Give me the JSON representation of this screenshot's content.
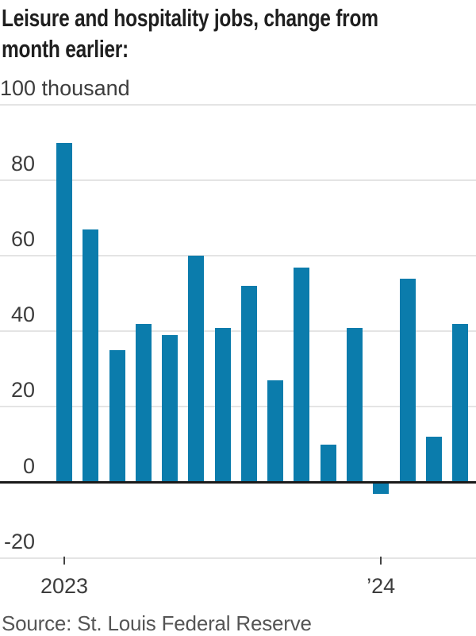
{
  "header": {
    "title_line1": "Leisure and hospitality jobs, change from",
    "title_line2": "month earlier:"
  },
  "footer": {
    "source": "Source: St. Louis Federal Reserve"
  },
  "colors": {
    "bar": "#0b7cac",
    "zero_line": "#1a1a1a",
    "gridline": "#e4e4e4",
    "axis_text": "#3d3d3d",
    "title_text": "#1f1f1f",
    "source_text": "#555555"
  },
  "chart_data": {
    "type": "bar",
    "title": "Leisure and hospitality jobs, change from month earlier:",
    "unit": "thousand",
    "values": [
      90,
      67,
      35,
      42,
      39,
      60,
      41,
      52,
      27,
      57,
      10,
      41,
      -3,
      54,
      12,
      42
    ],
    "ylim": [
      -20,
      100
    ],
    "grid": true,
    "legend": "none",
    "y_ticks": [
      {
        "value": 100,
        "label": "100 thousand"
      },
      {
        "value": 80,
        "label": "80"
      },
      {
        "value": 60,
        "label": "60"
      },
      {
        "value": 40,
        "label": "40"
      },
      {
        "value": 20,
        "label": "20"
      },
      {
        "value": 0,
        "label": "0"
      },
      {
        "value": -20,
        "label": "-20"
      }
    ],
    "x_ticks": [
      {
        "bar_index": 0,
        "label": "2023"
      },
      {
        "bar_index": 12,
        "label": "’24"
      }
    ]
  }
}
